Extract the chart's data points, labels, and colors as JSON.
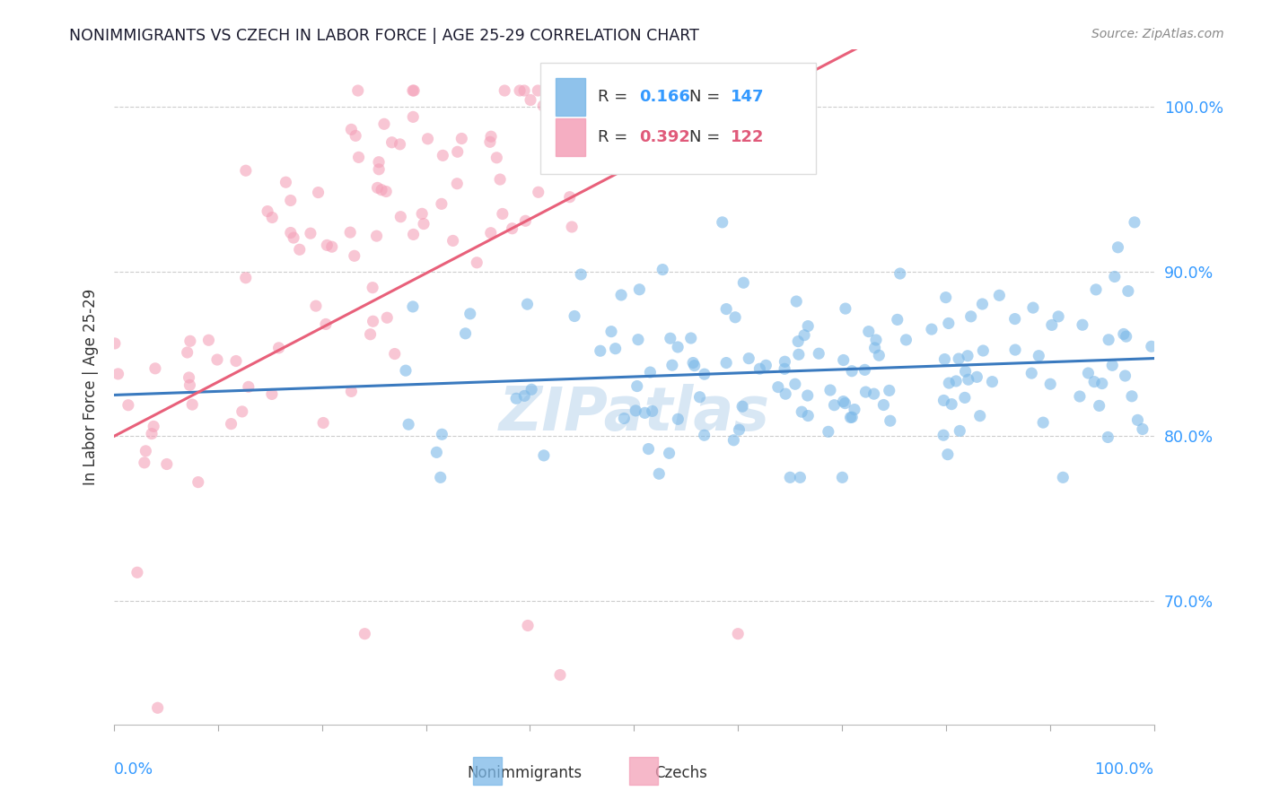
{
  "title": "NONIMMIGRANTS VS CZECH IN LABOR FORCE | AGE 25-29 CORRELATION CHART",
  "source": "Source: ZipAtlas.com",
  "ylabel": "In Labor Force | Age 25-29",
  "ytick_labels": [
    "70.0%",
    "80.0%",
    "90.0%",
    "100.0%"
  ],
  "ytick_values": [
    0.7,
    0.8,
    0.9,
    1.0
  ],
  "xlim": [
    0.0,
    1.0
  ],
  "ylim": [
    0.625,
    1.035
  ],
  "blue_color": "#7bb8e8",
  "pink_color": "#f4a0b8",
  "blue_line_color": "#3a7abf",
  "pink_line_color": "#e8607a",
  "watermark_color": "#c8ddf0",
  "legend_r_color": "#3399ff",
  "legend_pink_r_color": "#e05a7a",
  "n_blue": 147,
  "n_pink": 122,
  "blue_seed": 12,
  "pink_seed": 7
}
